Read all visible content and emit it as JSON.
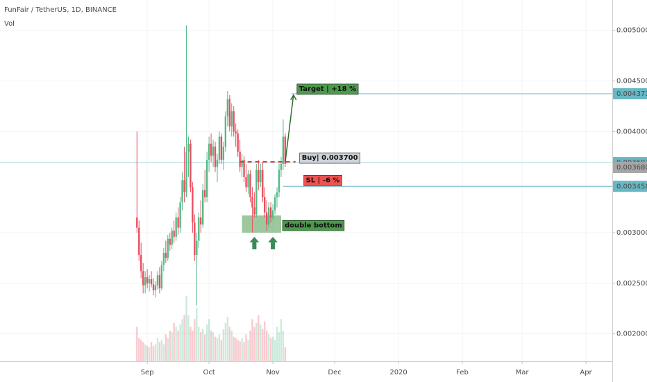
{
  "chart_data": {
    "type": "candlestick",
    "title": "FunFair / TetherUS, 1D, BINANCE",
    "volume_label": "Vol",
    "up_color": "#53b987",
    "down_color": "#eb4d5c",
    "xlim": [
      -71.5,
      225.8
    ],
    "xticks": [
      {
        "value": 0,
        "label": "Sep"
      },
      {
        "value": 30,
        "label": "Oct"
      },
      {
        "value": 61,
        "label": "Nov"
      },
      {
        "value": 91,
        "label": "Dec"
      },
      {
        "value": 122,
        "label": "2020"
      },
      {
        "value": 153,
        "label": "Feb"
      },
      {
        "value": 182,
        "label": "Mar"
      },
      {
        "value": 213,
        "label": "Apr"
      }
    ],
    "ylim": [
      0.00173,
      0.0053
    ],
    "yticks": [
      {
        "value": 0.002,
        "label": "0.002000"
      },
      {
        "value": 0.0025,
        "label": "0.002500"
      },
      {
        "value": 0.003,
        "label": "0.003000"
      },
      {
        "value": 0.004,
        "label": "0.004000"
      },
      {
        "value": 0.0045,
        "label": "0.004500"
      },
      {
        "value": 0.005,
        "label": "0.005000"
      }
    ],
    "vlim": [
      0,
      100
    ],
    "x": [
      -5,
      -4,
      -3,
      -2,
      -1,
      0,
      1,
      2,
      3,
      4,
      5,
      6,
      7,
      8,
      9,
      10,
      11,
      12,
      13,
      14,
      15,
      16,
      17,
      18,
      19,
      20,
      21,
      22,
      23,
      24,
      25,
      26,
      27,
      28,
      29,
      30,
      31,
      32,
      33,
      34,
      35,
      36,
      37,
      38,
      39,
      40,
      41,
      42,
      43,
      44,
      45,
      46,
      47,
      48,
      49,
      50,
      51,
      52,
      53,
      54,
      55,
      56,
      57,
      58,
      59,
      60,
      61,
      62,
      63,
      64,
      65,
      66,
      67
    ],
    "open": [
      0.00315,
      0.00305,
      0.00278,
      0.00262,
      0.00248,
      0.00256,
      0.0025,
      0.00254,
      0.00249,
      0.00243,
      0.00248,
      0.00258,
      0.00245,
      0.00268,
      0.0028,
      0.00275,
      0.00294,
      0.00288,
      0.00302,
      0.00296,
      0.00315,
      0.00305,
      0.0033,
      0.00352,
      0.0034,
      0.0038,
      0.00388,
      0.00345,
      0.0031,
      0.00278,
      0.00292,
      0.00315,
      0.00308,
      0.00342,
      0.00335,
      0.00372,
      0.00388,
      0.00376,
      0.00385,
      0.00365,
      0.00372,
      0.00395,
      0.00372,
      0.00385,
      0.00415,
      0.00432,
      0.00405,
      0.0042,
      0.004,
      0.00398,
      0.0038,
      0.00365,
      0.00372,
      0.00355,
      0.00345,
      0.00358,
      0.00335,
      0.00325,
      0.00318,
      0.00362,
      0.0035,
      0.00362,
      0.00335,
      0.0032,
      0.00308,
      0.00325,
      0.00315,
      0.00322,
      0.00335,
      0.0034,
      0.00362,
      0.00368,
      0.00395
    ],
    "high": [
      0.004,
      0.00312,
      0.0029,
      0.0027,
      0.00262,
      0.00264,
      0.00258,
      0.00262,
      0.00255,
      0.00252,
      0.00262,
      0.00266,
      0.00272,
      0.00285,
      0.00292,
      0.00298,
      0.003,
      0.00305,
      0.00312,
      0.0032,
      0.00325,
      0.00335,
      0.0036,
      0.00385,
      0.00505,
      0.00395,
      0.00392,
      0.0035,
      0.00318,
      0.003,
      0.0032,
      0.00332,
      0.00348,
      0.00362,
      0.0038,
      0.00395,
      0.00398,
      0.00392,
      0.0039,
      0.00378,
      0.004,
      0.00398,
      0.0039,
      0.0042,
      0.0044,
      0.00436,
      0.00428,
      0.00425,
      0.00408,
      0.00402,
      0.00392,
      0.00378,
      0.00376,
      0.00368,
      0.00362,
      0.00362,
      0.00345,
      0.0034,
      0.00368,
      0.00372,
      0.00368,
      0.0037,
      0.00345,
      0.00332,
      0.0033,
      0.0033,
      0.00328,
      0.00338,
      0.00345,
      0.00368,
      0.00375,
      0.00412,
      0.00398
    ],
    "low": [
      0.003,
      0.00272,
      0.00255,
      0.0024,
      0.0024,
      0.00245,
      0.00242,
      0.00246,
      0.00238,
      0.00236,
      0.00244,
      0.0024,
      0.00243,
      0.00262,
      0.0027,
      0.00272,
      0.00282,
      0.00284,
      0.0029,
      0.00292,
      0.00298,
      0.003,
      0.00322,
      0.0033,
      0.00335,
      0.00355,
      0.0034,
      0.003,
      0.00272,
      0.00228,
      0.00285,
      0.003,
      0.00305,
      0.0033,
      0.0033,
      0.0036,
      0.0037,
      0.00365,
      0.0036,
      0.0035,
      0.00368,
      0.00368,
      0.00362,
      0.0038,
      0.00405,
      0.004,
      0.00395,
      0.00395,
      0.00385,
      0.00375,
      0.0036,
      0.00355,
      0.0035,
      0.0034,
      0.00338,
      0.0033,
      0.003,
      0.00315,
      0.00315,
      0.00342,
      0.00345,
      0.0033,
      0.00315,
      0.00302,
      0.00305,
      0.0031,
      0.00312,
      0.00318,
      0.00325,
      0.00335,
      0.00355,
      0.00362,
      0.00365
    ],
    "close": [
      0.00305,
      0.00278,
      0.00262,
      0.00248,
      0.00256,
      0.0025,
      0.00254,
      0.00249,
      0.00243,
      0.00248,
      0.00258,
      0.00245,
      0.00268,
      0.0028,
      0.00275,
      0.00294,
      0.00288,
      0.00302,
      0.00296,
      0.00315,
      0.00305,
      0.0033,
      0.00352,
      0.0034,
      0.0038,
      0.00388,
      0.00345,
      0.0031,
      0.00278,
      0.00292,
      0.00315,
      0.00308,
      0.00342,
      0.00335,
      0.00372,
      0.00388,
      0.00376,
      0.00385,
      0.00365,
      0.00372,
      0.00395,
      0.00372,
      0.00385,
      0.00415,
      0.00432,
      0.00405,
      0.0042,
      0.004,
      0.00398,
      0.0038,
      0.00365,
      0.00372,
      0.00355,
      0.00345,
      0.00358,
      0.00335,
      0.00325,
      0.00318,
      0.00362,
      0.0035,
      0.00362,
      0.00335,
      0.0032,
      0.00308,
      0.00325,
      0.00315,
      0.00322,
      0.00335,
      0.0034,
      0.00362,
      0.00368,
      0.00395,
      0.00368
    ],
    "volume": [
      45,
      30,
      28,
      25,
      22,
      20,
      18,
      25,
      20,
      22,
      30,
      25,
      28,
      22,
      35,
      30,
      40,
      38,
      50,
      45,
      40,
      48,
      55,
      60,
      85,
      60,
      45,
      40,
      55,
      70,
      45,
      38,
      42,
      35,
      48,
      55,
      40,
      38,
      32,
      30,
      35,
      28,
      42,
      50,
      58,
      45,
      40,
      32,
      30,
      28,
      26,
      30,
      25,
      35,
      28,
      40,
      55,
      45,
      50,
      60,
      48,
      42,
      52,
      40,
      35,
      30,
      32,
      28,
      45,
      38,
      55,
      40,
      18
    ],
    "price_lines": [
      {
        "value": 0.004373,
        "color": "#68b8c4"
      },
      {
        "value": 0.003693,
        "color": "#68b8c4"
      },
      {
        "value": 0.00368,
        "label": "0.003680",
        "color": "#a6a6a6"
      },
      {
        "value": 0.003458,
        "color": "#68b8c4"
      }
    ],
    "entry_line": {
      "value": 0.0037,
      "xlim": [
        45,
        72
      ],
      "color": "#e53935"
    },
    "zone": {
      "xlim": [
        46,
        65
      ],
      "ylim": [
        0.003,
        0.00317
      ],
      "color": "#4c9a4c"
    },
    "arrow": {
      "x": [
        67,
        71
      ],
      "y": [
        0.0037,
        0.00436
      ],
      "color": "#2e6b2e"
    },
    "bottom_markers": {
      "x": [
        52,
        61
      ],
      "color": "#3a8a5a"
    },
    "annotations": [
      {
        "text": "Target | +18 %",
        "color": "#4c9a4c"
      },
      {
        "text": "Buy| 0.003700",
        "color": "#cfd3da"
      },
      {
        "text": "SL | -6 %",
        "color": "#ef5350"
      },
      {
        "text": "double bottom",
        "color": "#4c9a4c"
      }
    ]
  }
}
